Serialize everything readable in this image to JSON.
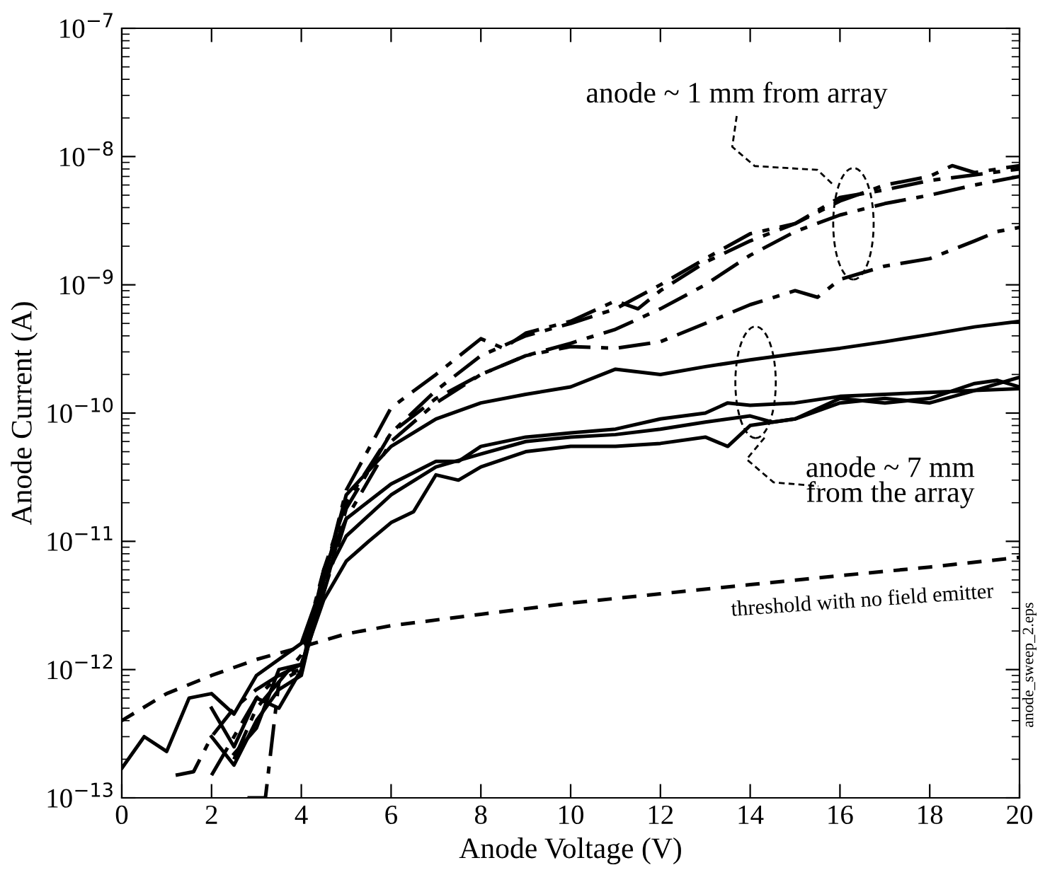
{
  "chart_data": {
    "type": "line",
    "xlabel": "Anode Voltage (V)",
    "ylabel": "Anode Current (A)",
    "log": "y",
    "grid": false,
    "legend": false,
    "marker": "none",
    "xlim": [
      0,
      20
    ],
    "xticks": [
      0,
      2,
      4,
      6,
      8,
      10,
      12,
      14,
      16,
      18,
      20
    ],
    "ylim": [
      1e-13,
      1e-07
    ],
    "yticks": [
      {
        "value": 1e-13,
        "label": "10$^{−13}$"
      },
      {
        "value": 1e-12,
        "label": "10$^{−12}$"
      },
      {
        "value": 1e-11,
        "label": "10$^{−11}$"
      },
      {
        "value": 1e-10,
        "label": "10$^{−10}$"
      },
      {
        "value": 1e-09,
        "label": "10$^{−9}$"
      },
      {
        "value": 1e-08,
        "label": "10$^{−8}$"
      },
      {
        "value": 1e-07,
        "label": "10$^{−7}$"
      }
    ],
    "series": [
      {
        "color": "#000000",
        "line_style": "dashed",
        "x": [
          2.5,
          3,
          3.5,
          4,
          4.5,
          5,
          6,
          7,
          8,
          8.5,
          9,
          10,
          11,
          11.5,
          12,
          13,
          14,
          15,
          16,
          17,
          18,
          18.5,
          19,
          20
        ],
        "values": [
          2e-13,
          5e-13,
          8e-13,
          1e-12,
          5e-12,
          2.5e-11,
          1.1e-10,
          2e-10,
          3.8e-10,
          3.2e-10,
          4.2e-10,
          5.2e-10,
          7.5e-10,
          6.5e-10,
          9e-10,
          1.5e-09,
          2.2e-09,
          3e-09,
          4.5e-09,
          6e-09,
          7e-09,
          8.5e-09,
          7.5e-09,
          8.5e-09
        ]
      },
      {
        "color": "#000000",
        "line_style": "dashed",
        "x": [
          2,
          2.5,
          3,
          3.5,
          4,
          4.5,
          5,
          6,
          7,
          8,
          9,
          10,
          11,
          12,
          13,
          14,
          15,
          16,
          17,
          18,
          19,
          20
        ],
        "values": [
          1.5e-13,
          3e-13,
          6e-13,
          9e-13,
          1.1e-12,
          4e-12,
          1.8e-11,
          7e-11,
          1.5e-10,
          2.8e-10,
          4e-10,
          5e-10,
          6.5e-10,
          1e-09,
          1.6e-09,
          2.5e-09,
          3e-09,
          4.8e-09,
          5.5e-09,
          6.5e-09,
          7.2e-09,
          8e-09
        ]
      },
      {
        "color": "#000000",
        "line_style": "dashed",
        "x": [
          1.2,
          1.6,
          2,
          2.5,
          3,
          3.5,
          4,
          4.5,
          5,
          6,
          7,
          8,
          9,
          10,
          11,
          12,
          13,
          14,
          15,
          16,
          17,
          18,
          19,
          20
        ],
        "values": [
          1.5e-13,
          1.6e-13,
          3e-13,
          5e-13,
          7e-13,
          9e-13,
          1e-12,
          4e-12,
          1.5e-11,
          6e-11,
          1.2e-10,
          2e-10,
          2.8e-10,
          3.5e-10,
          4.5e-10,
          6.5e-10,
          1e-09,
          1.7e-09,
          2.6e-09,
          3.5e-09,
          4.3e-09,
          5e-09,
          6e-09,
          7e-09
        ]
      },
      {
        "color": "#000000",
        "line_style": "dashed",
        "x": [
          2.8,
          3.2,
          3.5,
          4,
          4.5,
          5,
          6,
          7,
          8,
          9,
          10,
          11,
          12,
          13,
          14,
          15,
          15.5,
          16,
          17,
          18,
          19,
          19.5,
          20
        ],
        "values": [
          1e-13,
          1e-13,
          8e-13,
          1.3e-12,
          6e-12,
          2e-11,
          7e-11,
          1.3e-10,
          2e-10,
          2.8e-10,
          3.3e-10,
          3.2e-10,
          3.6e-10,
          5e-10,
          7e-10,
          9e-10,
          8e-10,
          1.1e-09,
          1.4e-09,
          1.6e-09,
          2.2e-09,
          2.6e-09,
          2.8e-09
        ]
      },
      {
        "color": "#000000",
        "line_style": "solid",
        "x": [
          0,
          0.5,
          1,
          1.5,
          2,
          2.5,
          3,
          3.5,
          4,
          4.5,
          5,
          6,
          7,
          8,
          9,
          10,
          11,
          12,
          13,
          14,
          15,
          16,
          17,
          18,
          19,
          20
        ],
        "values": [
          1.7e-13,
          3e-13,
          2.3e-13,
          6e-13,
          6.5e-13,
          4.5e-13,
          9e-13,
          1.2e-12,
          1.6e-12,
          5e-12,
          2.3e-11,
          5.5e-11,
          9e-11,
          1.2e-10,
          1.4e-10,
          1.6e-10,
          2.2e-10,
          2e-10,
          2.3e-10,
          2.6e-10,
          2.9e-10,
          3.2e-10,
          3.6e-10,
          4.1e-10,
          4.7e-10,
          5.2e-10
        ]
      },
      {
        "color": "#000000",
        "line_style": "solid",
        "x": [
          2,
          2.5,
          3,
          3.5,
          4,
          4.5,
          5,
          6,
          7,
          7.5,
          8,
          9,
          10,
          11,
          12,
          13,
          13.5,
          14,
          15,
          16,
          17,
          18,
          19,
          20
        ],
        "values": [
          5e-13,
          2.5e-13,
          6e-13,
          5e-13,
          1e-12,
          6e-12,
          1.5e-11,
          2.8e-11,
          4.2e-11,
          4.2e-11,
          5.5e-11,
          6.5e-11,
          7e-11,
          7.5e-11,
          9e-11,
          1e-10,
          1.2e-10,
          1.15e-10,
          1.2e-10,
          1.35e-10,
          1.4e-10,
          1.45e-10,
          1.5e-10,
          1.55e-10
        ]
      },
      {
        "color": "#000000",
        "line_style": "solid",
        "x": [
          2,
          2.5,
          3,
          3.5,
          4,
          4.5,
          5,
          6,
          7,
          8,
          9,
          10,
          11,
          12,
          13,
          14,
          14.5,
          15,
          16,
          17,
          18,
          19,
          19.5,
          20
        ],
        "values": [
          3e-13,
          1.8e-13,
          4e-13,
          7e-13,
          9e-13,
          5e-12,
          1.1e-11,
          2.3e-11,
          3.8e-11,
          4.8e-11,
          6e-11,
          6.5e-11,
          6.8e-11,
          7.5e-11,
          8.5e-11,
          9.5e-11,
          8.5e-11,
          9e-11,
          1.3e-10,
          1.2e-10,
          1.3e-10,
          1.7e-10,
          1.8e-10,
          1.6e-10
        ]
      },
      {
        "color": "#000000",
        "line_style": "solid",
        "x": [
          2.5,
          3,
          3.5,
          4,
          4.5,
          5,
          5.5,
          6,
          6.5,
          7,
          7.5,
          8,
          9,
          10,
          11,
          12,
          13,
          13.5,
          14,
          15,
          16,
          17,
          18,
          19,
          20
        ],
        "values": [
          2.2e-13,
          3.5e-13,
          1e-12,
          1.1e-12,
          3.5e-12,
          7e-12,
          1e-11,
          1.4e-11,
          1.7e-11,
          3.3e-11,
          3e-11,
          3.8e-11,
          5e-11,
          5.5e-11,
          5.5e-11,
          5.8e-11,
          6.5e-11,
          5.5e-11,
          8e-11,
          9e-11,
          1.2e-10,
          1.3e-10,
          1.2e-10,
          1.5e-10,
          1.9e-10
        ]
      },
      {
        "color": "#000000",
        "line_style": "dotted",
        "x": [
          0,
          1,
          2,
          3,
          4,
          5,
          6,
          8,
          10,
          12,
          14,
          16,
          18,
          20
        ],
        "values": [
          4e-13,
          6.5e-13,
          9e-13,
          1.2e-12,
          1.5e-12,
          1.9e-12,
          2.2e-12,
          2.7e-12,
          3.3e-12,
          3.9e-12,
          4.6e-12,
          5.4e-12,
          6.3e-12,
          7.5e-12
        ]
      }
    ],
    "annotations": [
      "anode ~ 1 mm from array",
      "anode ~ 7 mm\nfrom the array",
      "threshold with no field emitter",
      "anode_sweep_2.eps"
    ]
  }
}
